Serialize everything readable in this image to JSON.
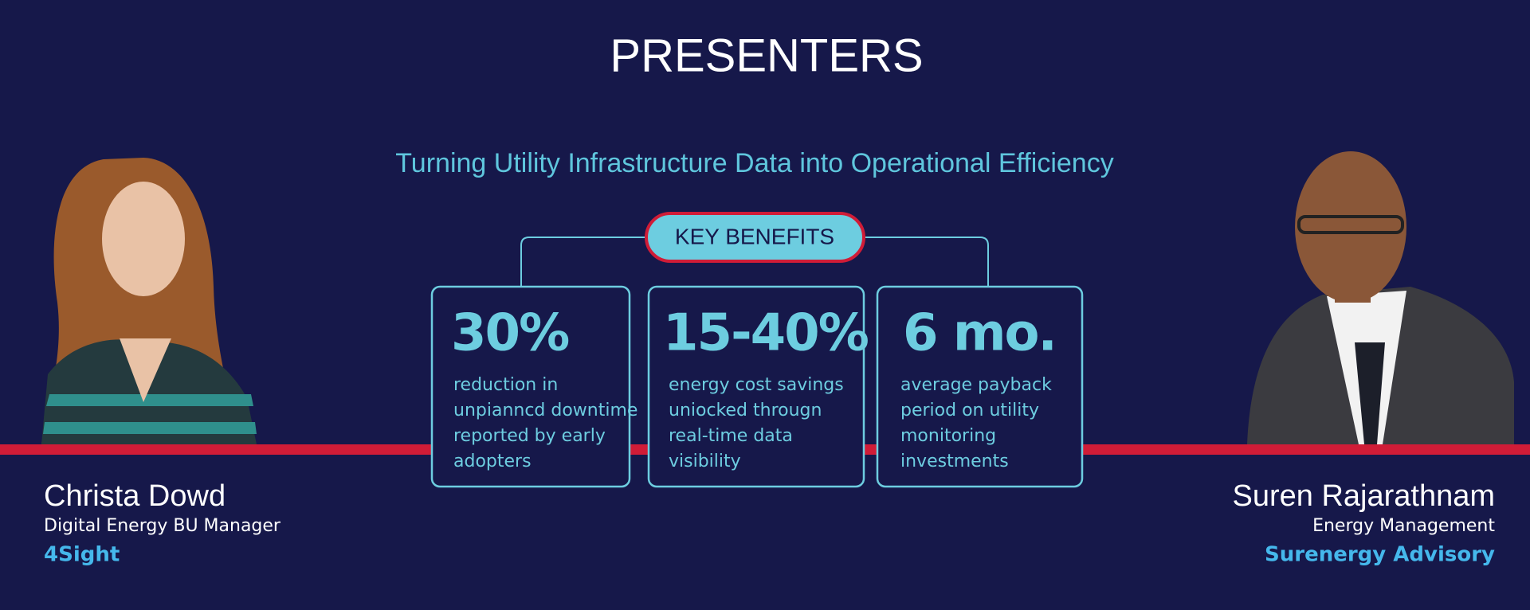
{
  "title": "PRESENTERS",
  "subtitle": "Turning Utility Infrastructure Data into Operational Efficiency",
  "key_benefits": {
    "label": "KEY BENEFITS",
    "items": [
      {
        "value": "30%",
        "lines": [
          "reduction in",
          "unpianncd downtime",
          "reported by early",
          "adopters"
        ]
      },
      {
        "value": "15-40%",
        "lines": [
          "energy cost savings",
          "uniocked througn",
          "real-time data",
          "visibility"
        ]
      },
      {
        "value": "6 mo.",
        "lines": [
          "average payback",
          "period on utility",
          "monitoring",
          "investments"
        ]
      }
    ]
  },
  "presenters": [
    {
      "name": "Christa Dowd",
      "role": "Digital Energy BU Manager",
      "company": "4Sight"
    },
    {
      "name": "Suren Rajarathnam",
      "role": "Energy Management",
      "company": "Surenergy Advisory"
    }
  ]
}
